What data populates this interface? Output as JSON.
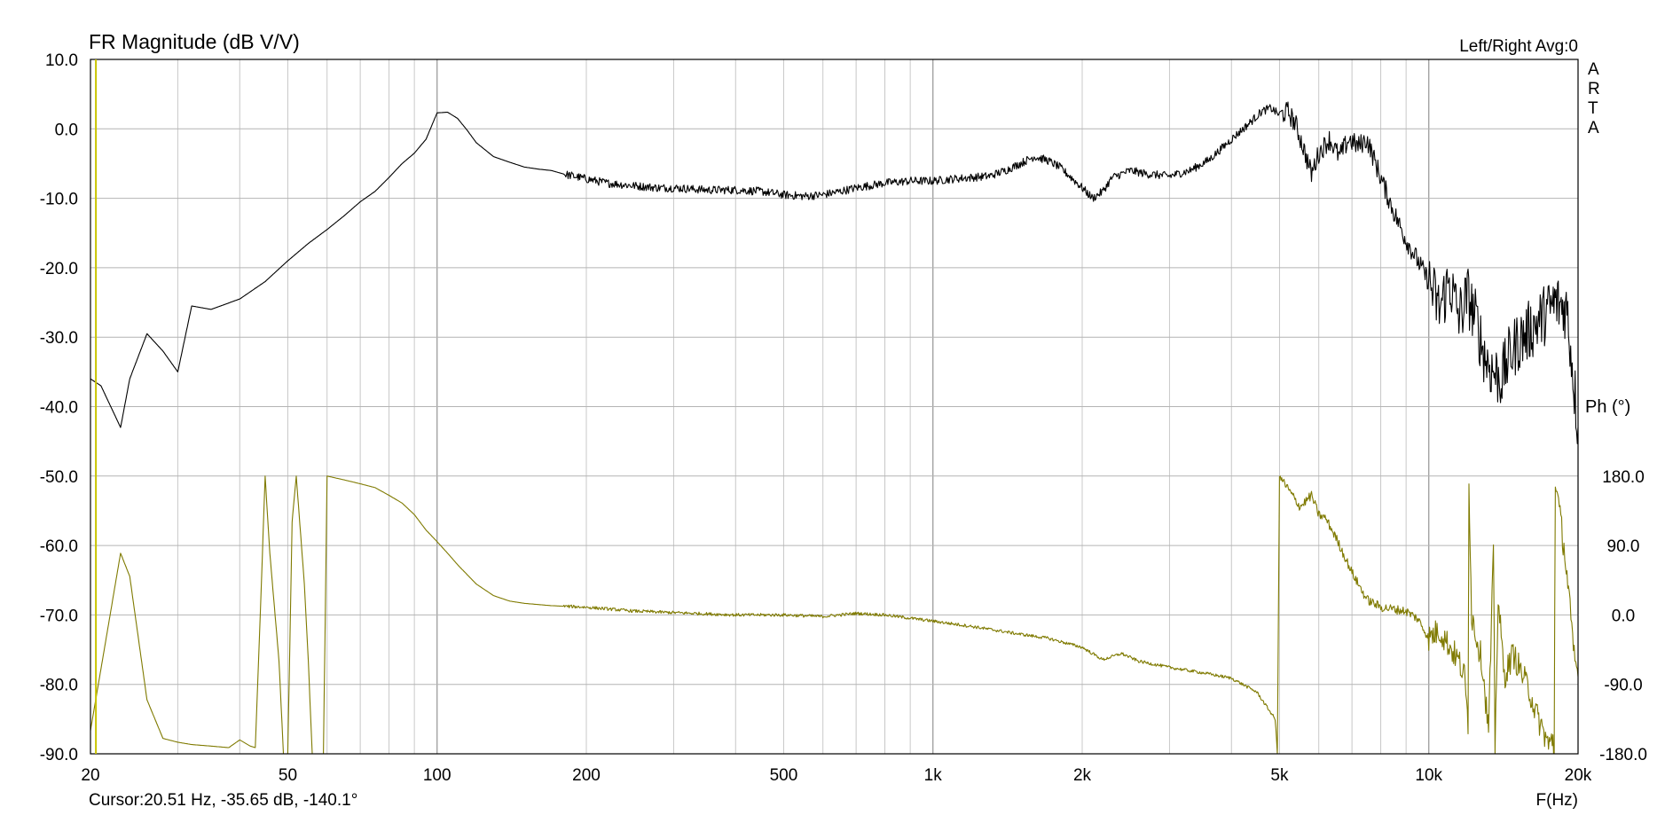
{
  "header": {
    "title": "FR Magnitude (dB V/V)",
    "info": "Left/Right  Avg:0",
    "brand": [
      "A",
      "R",
      "T",
      "A"
    ]
  },
  "footer": {
    "cursor": "Cursor:20.51 Hz, -35.65 dB, -140.1°",
    "xunit": "F(Hz)"
  },
  "chart_data": {
    "type": "line",
    "title": "FR Magnitude (dB V/V)",
    "xlabel": "F(Hz)",
    "ylabel": "FR Magnitude (dB V/V)",
    "y2label": "Ph (°)",
    "xscale": "log",
    "xlim": [
      20,
      20000
    ],
    "ylim": [
      -90,
      10
    ],
    "y2lim": [
      -180,
      180
    ],
    "grid": true,
    "colors": {
      "magnitude": "#000000",
      "phase": "#7f7a00",
      "cursor": "#c8c400",
      "grid": "#c8c8c8",
      "frame": "#000000"
    },
    "xticks": [
      {
        "v": 20,
        "label": "20"
      },
      {
        "v": 50,
        "label": "50"
      },
      {
        "v": 100,
        "label": "100"
      },
      {
        "v": 200,
        "label": "200"
      },
      {
        "v": 500,
        "label": "500"
      },
      {
        "v": 1000,
        "label": "1k"
      },
      {
        "v": 2000,
        "label": "2k"
      },
      {
        "v": 5000,
        "label": "5k"
      },
      {
        "v": 10000,
        "label": "10k"
      },
      {
        "v": 20000,
        "label": "20k"
      }
    ],
    "yticks": [
      {
        "v": 10,
        "label": "10.0"
      },
      {
        "v": 0,
        "label": "0.0"
      },
      {
        "v": -10,
        "label": "-10.0"
      },
      {
        "v": -20,
        "label": "-20.0"
      },
      {
        "v": -30,
        "label": "-30.0"
      },
      {
        "v": -40,
        "label": "-40.0"
      },
      {
        "v": -50,
        "label": "-50.0"
      },
      {
        "v": -60,
        "label": "-60.0"
      },
      {
        "v": -70,
        "label": "-70.0"
      },
      {
        "v": -80,
        "label": "-80.0"
      },
      {
        "v": -90,
        "label": "-90.0"
      }
    ],
    "y2ticks": [
      {
        "v": 180,
        "label": "180.0"
      },
      {
        "v": 90,
        "label": "90.0"
      },
      {
        "v": 0,
        "label": "0.0"
      },
      {
        "v": -90,
        "label": "-90.0"
      },
      {
        "v": -180,
        "label": "-180.0"
      }
    ],
    "cursor_x": 20.51,
    "series": [
      {
        "key": "magnitude",
        "unit": "dB",
        "x": [
          20,
          21,
          23,
          24,
          26,
          28,
          30,
          32,
          35,
          40,
          45,
          50,
          55,
          60,
          65,
          70,
          75,
          80,
          85,
          90,
          95,
          100,
          105,
          110,
          115,
          120,
          130,
          140,
          150,
          160,
          170,
          180,
          200,
          220,
          250,
          280,
          300,
          350,
          400,
          450,
          500,
          550,
          600,
          650,
          700,
          800,
          900,
          1000,
          1100,
          1200,
          1300,
          1400,
          1500,
          1600,
          1700,
          1800,
          1900,
          2000,
          2100,
          2200,
          2300,
          2500,
          2700,
          3000,
          3300,
          3600,
          4000,
          4300,
          4600,
          4800,
          5000,
          5200,
          5400,
          5600,
          5800,
          6000,
          6300,
          6600,
          6900,
          7200,
          7500,
          8000,
          8500,
          9000,
          9500,
          10000,
          10500,
          11000,
          11500,
          12000,
          12500,
          13000,
          13500,
          14000,
          14500,
          15000,
          16000,
          17000,
          18000,
          19000,
          20000
        ],
        "values": [
          -36,
          -37,
          -43,
          -36,
          -29.5,
          -32,
          -35,
          -25.5,
          -26,
          -24.5,
          -22,
          -19,
          -16.5,
          -14.5,
          -12.5,
          -10.5,
          -9,
          -7,
          -5,
          -3.5,
          -1.5,
          2.3,
          2.4,
          1.5,
          -0.2,
          -2,
          -4,
          -4.8,
          -5.5,
          -5.8,
          -6,
          -6.5,
          -7.2,
          -7.8,
          -8.2,
          -8.5,
          -8.5,
          -8.8,
          -8.8,
          -9,
          -9.5,
          -9.7,
          -9.5,
          -9,
          -8.5,
          -7.8,
          -7.5,
          -7.5,
          -7.2,
          -7,
          -6.8,
          -6,
          -5,
          -4,
          -4.5,
          -5.5,
          -7,
          -8.5,
          -10,
          -9,
          -7,
          -6,
          -6.5,
          -6.8,
          -6,
          -4.5,
          -1.5,
          0.5,
          2.5,
          3,
          2,
          2.5,
          0.5,
          -3,
          -6.5,
          -3.5,
          -1.5,
          -4,
          -1.5,
          -2.5,
          -1.5,
          -7,
          -12,
          -16,
          -19,
          -22,
          -26,
          -22,
          -27,
          -24,
          -28,
          -33,
          -35,
          -36,
          -33,
          -31,
          -29,
          -27,
          -25,
          -26,
          -43
        ]
      },
      {
        "key": "phase",
        "unit": "deg",
        "x": [
          20,
          23,
          24,
          26,
          28,
          30,
          32,
          35,
          38,
          40,
          42,
          43,
          44,
          45,
          46,
          48,
          49,
          50,
          51,
          52,
          54,
          55,
          56,
          57,
          58,
          59,
          60,
          65,
          70,
          75,
          80,
          85,
          90,
          95,
          100,
          105,
          110,
          120,
          130,
          140,
          150,
          170,
          200,
          250,
          300,
          400,
          500,
          600,
          700,
          800,
          1000,
          1200,
          1500,
          1700,
          2000,
          2200,
          2400,
          2600,
          3000,
          3500,
          4000,
          4500,
          4900,
          4950,
          5000,
          5500,
          5800,
          6000,
          6200,
          6500,
          7000,
          7500,
          8000,
          9000,
          9500,
          10000,
          10500,
          11000,
          11500,
          11800,
          12000,
          12050,
          12200,
          12800,
          13200,
          13500,
          13600,
          13800,
          14200,
          14800,
          15500,
          16000,
          16500,
          17000,
          17500,
          17800,
          17900,
          18000,
          18200,
          18800,
          19200,
          19500,
          20000
        ],
        "values": [
          -150,
          80,
          50,
          -110,
          -160,
          -165,
          -168,
          -170,
          -172,
          -162,
          -170,
          -172,
          0,
          180,
          80,
          -60,
          -180,
          -180,
          120,
          180,
          40,
          -60,
          -180,
          -180,
          -180,
          -180,
          180,
          175,
          170,
          165,
          155,
          145,
          130,
          110,
          95,
          80,
          65,
          40,
          25,
          18,
          15,
          12,
          10,
          5,
          3,
          0,
          0,
          -2,
          2,
          0,
          -8,
          -15,
          -25,
          -30,
          -42,
          -58,
          -50,
          -60,
          -68,
          -75,
          -82,
          -100,
          -135,
          -180,
          180,
          140,
          155,
          130,
          125,
          100,
          55,
          20,
          10,
          5,
          -5,
          -30,
          -20,
          -40,
          -60,
          -80,
          -140,
          180,
          0,
          -60,
          -150,
          80,
          -170,
          20,
          -80,
          -50,
          -80,
          -100,
          -130,
          -150,
          -170,
          -160,
          -180,
          180,
          150,
          80,
          20,
          -40,
          -80
        ]
      }
    ]
  }
}
